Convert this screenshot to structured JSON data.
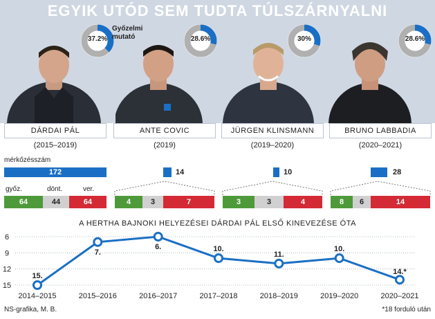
{
  "title": "EGYIK UTÓD SEM TUDTA TÚLSZÁRNYALNI",
  "win_rate_legend": [
    "Győzelmi",
    "mutató"
  ],
  "matches_label": "mérkőzésszám",
  "result_labels": {
    "wins": "győz.",
    "draws": "dönt.",
    "losses": "ver."
  },
  "colors": {
    "bar": "#1a6fc4",
    "wins": "#4e9a3a",
    "draws": "#d0d0d0",
    "losses": "#d42a35",
    "donut_track": "#b0b0b0",
    "line": "#1a6fc4",
    "header": "#cfd7e2"
  },
  "coaches": [
    {
      "name": "DÁRDAI PÁL",
      "years": "(2015–2019)",
      "win_rate": 37.2,
      "win_rate_label": "37.2%",
      "matches": 172,
      "matches_label": "172",
      "wins": 64,
      "wins_label": "64",
      "draws": 44,
      "draws_label": "44",
      "losses": 64,
      "losses_label": "64"
    },
    {
      "name": "ANTE COVIC",
      "years": "(2019)",
      "win_rate": 28.6,
      "win_rate_label": "28.6%",
      "matches": 14,
      "matches_label": "14",
      "wins": 4,
      "wins_label": "4",
      "draws": 3,
      "draws_label": "3",
      "losses": 7,
      "losses_label": "7"
    },
    {
      "name": "JÜRGEN KLINSMANN",
      "years": "(2019–2020)",
      "win_rate": 30,
      "win_rate_label": "30%",
      "matches": 10,
      "matches_label": "10",
      "wins": 3,
      "wins_label": "3",
      "draws": 3,
      "draws_label": "3",
      "losses": 4,
      "losses_label": "4"
    },
    {
      "name": "BRUNO LABBADIA",
      "years": "(2020–2021)",
      "win_rate": 28.6,
      "win_rate_label": "28.6%",
      "matches": 28,
      "matches_label": "28",
      "wins": 8,
      "wins_label": "8",
      "draws": 6,
      "draws_label": "6",
      "losses": 14,
      "losses_label": "14"
    }
  ],
  "line_chart": {
    "title": "A HERTHA BAJNOKI HELYEZÉSEI DÁRDAI PÁL ELSŐ KINEVEZÉSE ÓTA",
    "footnote": "*18 forduló után",
    "credit": "NS-grafika, M. B."
  },
  "chart_data": {
    "type": "line",
    "title": "A HERTHA BAJNOKI HELYEZÉSEI DÁRDAI PÁL ELSŐ KINEVEZÉSE ÓTA",
    "x": [
      "2014–2015",
      "2015–2016",
      "2016–2017",
      "2017–2018",
      "2018–2019",
      "2019–2020",
      "2020–2021"
    ],
    "y": [
      15,
      7,
      6,
      10,
      11,
      10,
      14
    ],
    "point_labels": [
      "15.",
      "7.",
      "6.",
      "10.",
      "11.",
      "10.",
      "14.*"
    ],
    "yticks": [
      6,
      9,
      12,
      15
    ],
    "ytick_labels": [
      "6",
      "9",
      "12",
      "15"
    ],
    "ylim": [
      15,
      6
    ],
    "y_inverted": true,
    "grid": "horizontal dotted",
    "xlabel": "",
    "ylabel": ""
  }
}
